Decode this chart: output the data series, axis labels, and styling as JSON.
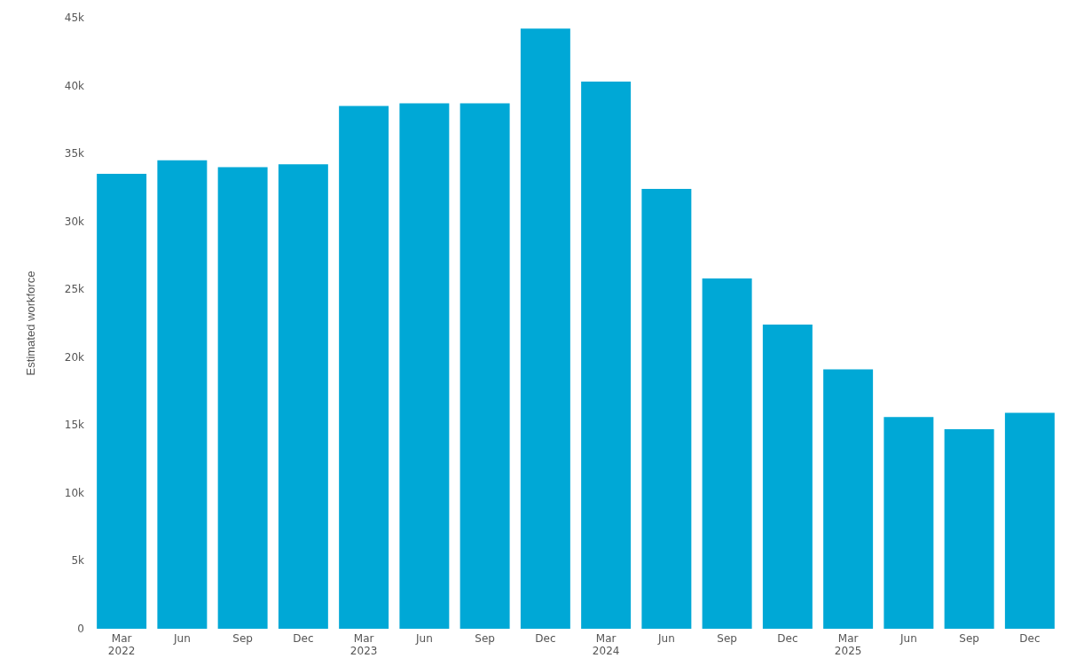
{
  "chart_data": {
    "type": "bar",
    "ylabel": "Estimated workforce",
    "categories": [
      "Mar\n2022",
      "Jun",
      "Sep",
      "Dec",
      "Mar\n2023",
      "Jun",
      "Sep",
      "Dec",
      "Mar\n2024",
      "Jun",
      "Sep",
      "Dec",
      "Mar\n2025",
      "Jun",
      "Sep",
      "Dec"
    ],
    "values": [
      33500,
      34500,
      34000,
      34200,
      38500,
      38700,
      38700,
      44200,
      40300,
      32400,
      25800,
      22400,
      19100,
      15600,
      14700,
      15900
    ],
    "color": "#00a8d6",
    "ylim": [
      0,
      45000
    ],
    "yticks": [
      {
        "value": 0,
        "label": "0"
      },
      {
        "value": 5000,
        "label": "5k"
      },
      {
        "value": 10000,
        "label": "10k"
      },
      {
        "value": 15000,
        "label": "15k"
      },
      {
        "value": 20000,
        "label": "20k"
      },
      {
        "value": 25000,
        "label": "25k"
      },
      {
        "value": 30000,
        "label": "30k"
      },
      {
        "value": 35000,
        "label": "35k"
      },
      {
        "value": 40000,
        "label": "40k"
      },
      {
        "value": 45000,
        "label": "45k"
      }
    ],
    "grid": false
  }
}
